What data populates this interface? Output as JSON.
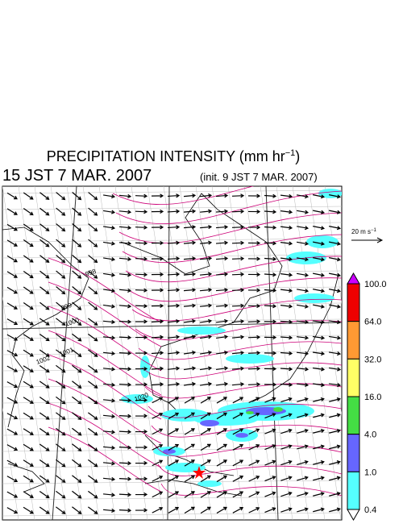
{
  "header": {
    "title_main": "PRECIPITATION INTENSITY (mm hr",
    "title_sup": "−1",
    "title_end": ")",
    "valid_time": "15 JST 7 MAR. 2007",
    "init_time": "(init. 9 JST 7 MAR. 2007)"
  },
  "wind_scale": {
    "label_main": "20 m s",
    "label_sup": "−1"
  },
  "colorbar": {
    "labels": [
      "100.0",
      "64.0",
      "32.0",
      "16.0",
      "4.0",
      "1.0",
      "0.4"
    ],
    "colors": [
      "#cc00ff",
      "#ee0000",
      "#ff9933",
      "#ffff66",
      "#44dd44",
      "#6666ff",
      "#55ffff",
      "#ffffff"
    ]
  },
  "isobars": {
    "labels": [
      "998",
      "999",
      "1000",
      "1001",
      "1002",
      "1020"
    ]
  }
}
